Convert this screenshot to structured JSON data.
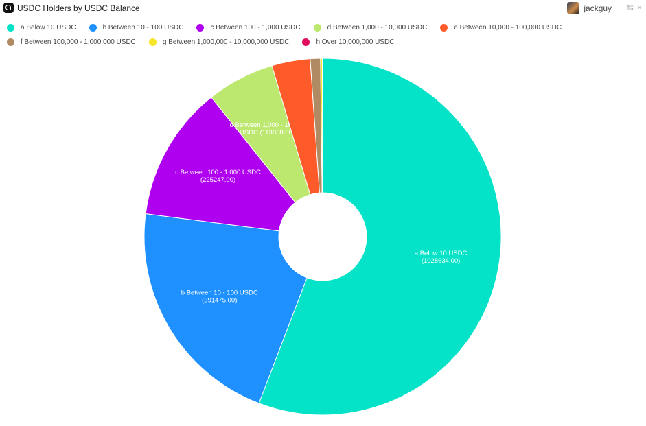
{
  "header": {
    "title": "USDC Holders by USDC Balance",
    "username": "jackguy",
    "logo_icon": "flipside-logo-icon",
    "share_icon": "arrows-swap-icon",
    "close_icon": "close-icon"
  },
  "chart_data": {
    "type": "pie",
    "donut": true,
    "legend_position": "top-left",
    "categories": [
      "a Below 10 USDC",
      "b Between 10 - 100 USDC",
      "c Between 100 - 1,000 USDC",
      "d Between 1,000 - 10,000 USDC",
      "e Between 10,000 - 100,000 USDC",
      "f Between 100,000 - 1,000,000 USDC",
      "g Between 1,000,000 - 10,000,000 USDC",
      "h Over 10,000,000 USDC"
    ],
    "values": [
      1028634,
      391475,
      225247,
      113058,
      64000,
      17000,
      3000,
      600
    ],
    "colors": [
      "#04e2c8",
      "#1e90ff",
      "#b000f0",
      "#bde870",
      "#ff5a2a",
      "#b08a63",
      "#f5e62a",
      "#e0105f"
    ],
    "data_labels": [
      [
        "a Below 10 USDC",
        "(1028634.00)"
      ],
      [
        "b Between 10 - 100 USDC",
        "(391475.00)"
      ],
      [
        "c Between 100 - 1,000 USDC",
        "(225247.00)"
      ],
      [
        "d Between 1,000 - 10,000",
        "USDC (113058.00)"
      ]
    ]
  }
}
